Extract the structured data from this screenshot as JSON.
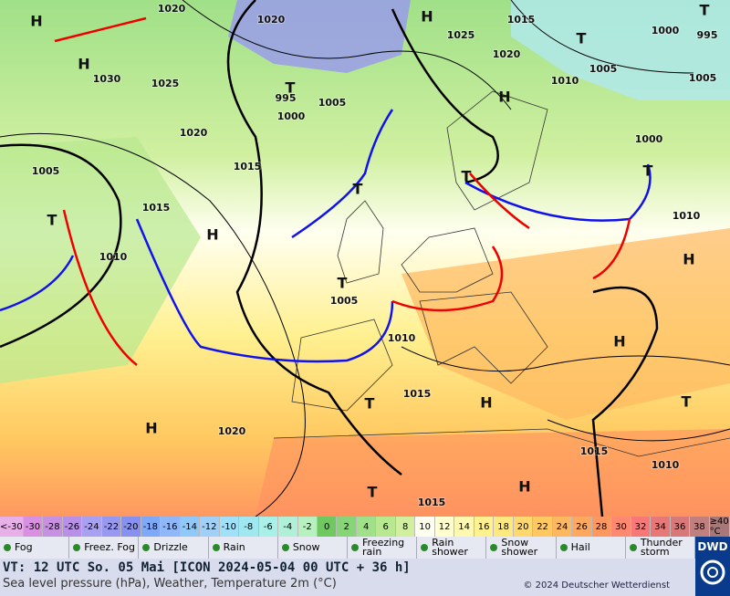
{
  "map": {
    "pressure_labels": [
      "1020",
      "1020",
      "1030",
      "1025",
      "995",
      "1000",
      "1005",
      "1020",
      "1015",
      "1005",
      "1015",
      "1010",
      "1005",
      "1010",
      "1015",
      "1020",
      "1015",
      "1015",
      "1010",
      "1010",
      "1000",
      "1005",
      "1010",
      "1005",
      "1000",
      "995",
      "1015",
      "1025",
      "1020"
    ],
    "centers": [
      "H",
      "H",
      "T",
      "H",
      "H",
      "T",
      "T",
      "T",
      "T",
      "T",
      "T",
      "H",
      "T",
      "H",
      "H",
      "T",
      "H",
      "H",
      "T",
      "H",
      "T"
    ]
  },
  "temperature_scale": {
    "labels": [
      "<-30",
      -30,
      -28,
      -26,
      -24,
      -22,
      -20,
      -18,
      -16,
      -14,
      -12,
      -10,
      -8,
      -6,
      -4,
      -2,
      0,
      2,
      4,
      6,
      8,
      10,
      12,
      14,
      16,
      18,
      20,
      22,
      24,
      26,
      28,
      30,
      32,
      34,
      36,
      38,
      "≥40 °C"
    ],
    "colors": [
      "#e8b0e8",
      "#d890e0",
      "#c890e0",
      "#b890e8",
      "#a8a0f0",
      "#9898f0",
      "#8890f0",
      "#80a8f8",
      "#90b8f8",
      "#90c8f8",
      "#a0d0f8",
      "#a0e0f8",
      "#a0e8f0",
      "#a8f0e8",
      "#b0f0d8",
      "#b8f0c0",
      "#70c860",
      "#88d478",
      "#a0e088",
      "#b8e890",
      "#d0f0a0",
      "#fffff0",
      "#ffffd0",
      "#fff8b0",
      "#fff090",
      "#ffe880",
      "#ffd870",
      "#ffc860",
      "#ffb860",
      "#ffa860",
      "#ff9860",
      "#ff8870",
      "#f87878",
      "#e87878",
      "#d87878",
      "#c08080",
      "#a87878"
    ]
  },
  "weather_legend": [
    "Fog",
    "Freez. Fog",
    "Drizzle",
    "Rain",
    "Snow",
    "Freezing rain",
    "Rain shower",
    "Snow shower",
    "Hail",
    "Thunder storm"
  ],
  "footer": {
    "valid_time": "VT: 12 UTC So.  05 Mai [ICON 2024-05-04  00 UTC + 36 h]",
    "subtitle": "Sea level pressure (hPa), Weather, Temperature 2m (°C)",
    "copyright": "© 2024 Deutscher Wetterdienst",
    "logo": "DWD"
  }
}
